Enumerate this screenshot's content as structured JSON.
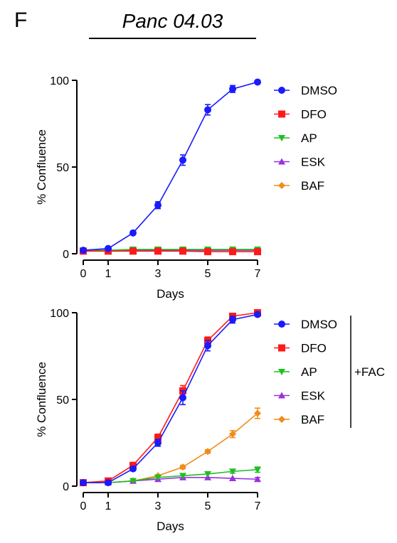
{
  "panel_label": "F",
  "panel_title": "Panc 04.03",
  "series_styles": [
    {
      "name": "DMSO",
      "color": "#1a1aff",
      "marker": "circle"
    },
    {
      "name": "DFO",
      "color": "#ff1a1a",
      "marker": "square"
    },
    {
      "name": "AP",
      "color": "#1fbf1f",
      "marker": "triangle-down"
    },
    {
      "name": "ESK",
      "color": "#9b30e0",
      "marker": "triangle-up"
    },
    {
      "name": "BAF",
      "color": "#f08c1a",
      "marker": "diamond"
    }
  ],
  "chart_data": [
    {
      "type": "line",
      "xlabel": "Days",
      "ylabel": "% Confluence",
      "xlim": [
        0,
        7
      ],
      "ylim": [
        0,
        100
      ],
      "x_ticks": [
        "0",
        "1",
        "3",
        "5",
        "7"
      ],
      "y_ticks": [
        "0",
        "50",
        "100"
      ],
      "legend_position": "right",
      "bracket_label": "",
      "x": [
        0,
        1,
        2,
        3,
        4,
        5,
        6,
        7
      ],
      "series": [
        {
          "name": "DMSO",
          "values": [
            2,
            3,
            12,
            28,
            54,
            83,
            95,
            99
          ],
          "errors": [
            1,
            1,
            1,
            2,
            3,
            3,
            2,
            1
          ]
        },
        {
          "name": "DFO",
          "values": [
            1.5,
            1.5,
            1.5,
            1.5,
            1.5,
            1.2,
            1.2,
            1.2
          ],
          "errors": [
            0.5,
            0.5,
            0.5,
            0.5,
            0.5,
            0.5,
            0.5,
            0.5
          ]
        },
        {
          "name": "AP",
          "values": [
            2,
            2,
            2.5,
            2.5,
            2.5,
            2.5,
            2.5,
            2.5
          ],
          "errors": [
            0.5,
            0.5,
            0.5,
            0.5,
            0.5,
            0.5,
            0.5,
            0.5
          ]
        },
        {
          "name": "ESK",
          "values": [
            2,
            2,
            2,
            2,
            2,
            2,
            2,
            2
          ],
          "errors": [
            0.5,
            0.5,
            0.5,
            0.5,
            0.5,
            0.5,
            0.5,
            0.5
          ]
        },
        {
          "name": "BAF",
          "values": [
            2,
            2,
            2,
            2,
            2,
            2,
            2,
            2
          ],
          "errors": [
            0.5,
            0.5,
            0.5,
            0.5,
            0.5,
            0.5,
            0.5,
            0.5
          ]
        }
      ]
    },
    {
      "type": "line",
      "xlabel": "Days",
      "ylabel": "% Confluence",
      "xlim": [
        0,
        7
      ],
      "ylim": [
        0,
        100
      ],
      "x_ticks": [
        "0",
        "1",
        "3",
        "5",
        "7"
      ],
      "y_ticks": [
        "0",
        "50",
        "100"
      ],
      "legend_position": "right",
      "bracket_label": "+FAC",
      "x": [
        0,
        1,
        2,
        3,
        4,
        5,
        6,
        7
      ],
      "series": [
        {
          "name": "DMSO",
          "values": [
            2,
            2,
            10,
            25,
            51,
            81,
            96,
            99
          ],
          "errors": [
            1,
            1,
            1,
            2,
            4,
            3,
            2,
            1
          ]
        },
        {
          "name": "DFO",
          "values": [
            2,
            3,
            12,
            28,
            55,
            84,
            98,
            100
          ],
          "errors": [
            1,
            1,
            1,
            2,
            3,
            2,
            1,
            1
          ]
        },
        {
          "name": "AP",
          "values": [
            2,
            2,
            3,
            5,
            6,
            7,
            8.5,
            9.5
          ],
          "errors": [
            0.5,
            0.5,
            0.5,
            0.5,
            0.5,
            0.5,
            1,
            1.5
          ]
        },
        {
          "name": "ESK",
          "values": [
            2,
            2,
            3,
            4,
            5,
            5,
            4.5,
            4
          ],
          "errors": [
            0.5,
            0.5,
            0.5,
            0.5,
            0.5,
            0.5,
            0.5,
            1
          ]
        },
        {
          "name": "BAF",
          "values": [
            2,
            2,
            3,
            6,
            11,
            20,
            30,
            42
          ],
          "errors": [
            0.5,
            0.5,
            0.5,
            0.5,
            1,
            1,
            2,
            3
          ]
        }
      ]
    }
  ]
}
